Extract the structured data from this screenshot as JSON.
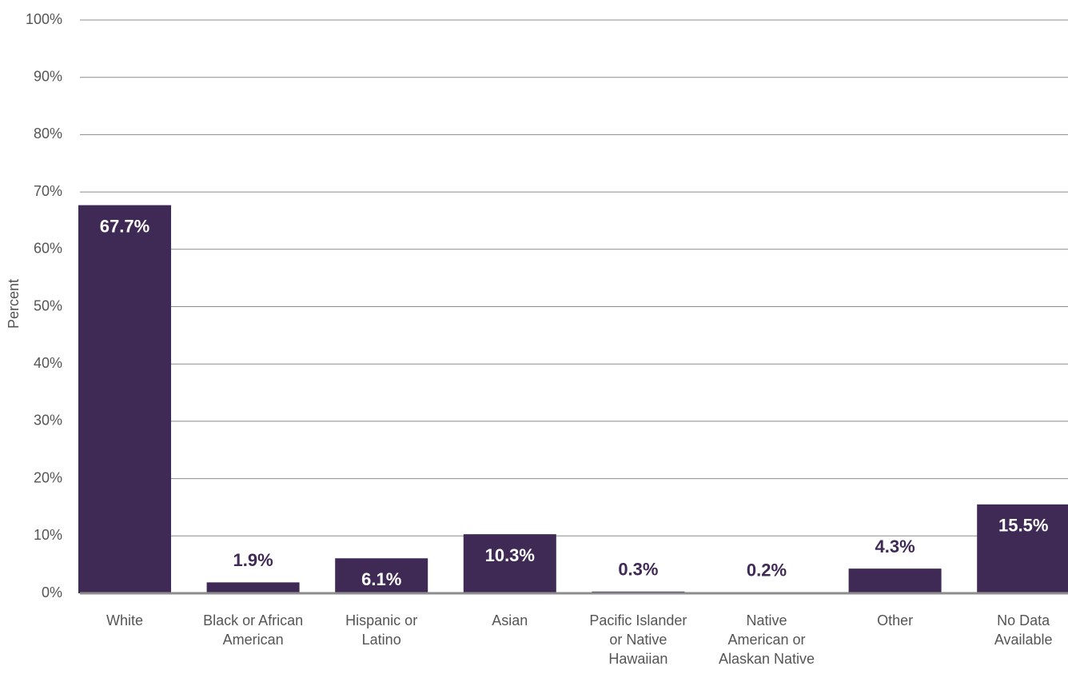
{
  "chart_data": {
    "type": "bar",
    "y_label": "Percent",
    "categories": [
      "White",
      "Black or African American",
      "Hispanic or Latino",
      "Asian",
      "Pacific Islander or Native Hawaiian",
      "Native American or Alaskan Native",
      "Other",
      "No Data Available"
    ],
    "values": [
      67.7,
      1.9,
      6.1,
      10.3,
      0.3,
      0.2,
      4.3,
      15.5
    ],
    "value_labels": [
      "67.7%",
      "1.9%",
      "6.1%",
      "10.3%",
      "0.3%",
      "0.2%",
      "4.3%",
      "15.5%"
    ],
    "color": "#3f2a56",
    "ylim": [
      0,
      100
    ],
    "yticks": [
      {
        "value": 0,
        "label": "0%"
      },
      {
        "value": 10,
        "label": "10%"
      },
      {
        "value": 20,
        "label": "20%"
      },
      {
        "value": 30,
        "label": "30%"
      },
      {
        "value": 40,
        "label": "40%"
      },
      {
        "value": 50,
        "label": "50%"
      },
      {
        "value": 60,
        "label": "60%"
      },
      {
        "value": 70,
        "label": "70%"
      },
      {
        "value": 80,
        "label": "80%"
      },
      {
        "value": 90,
        "label": "90%"
      },
      {
        "value": 100,
        "label": "100%"
      }
    ],
    "grid": true
  }
}
